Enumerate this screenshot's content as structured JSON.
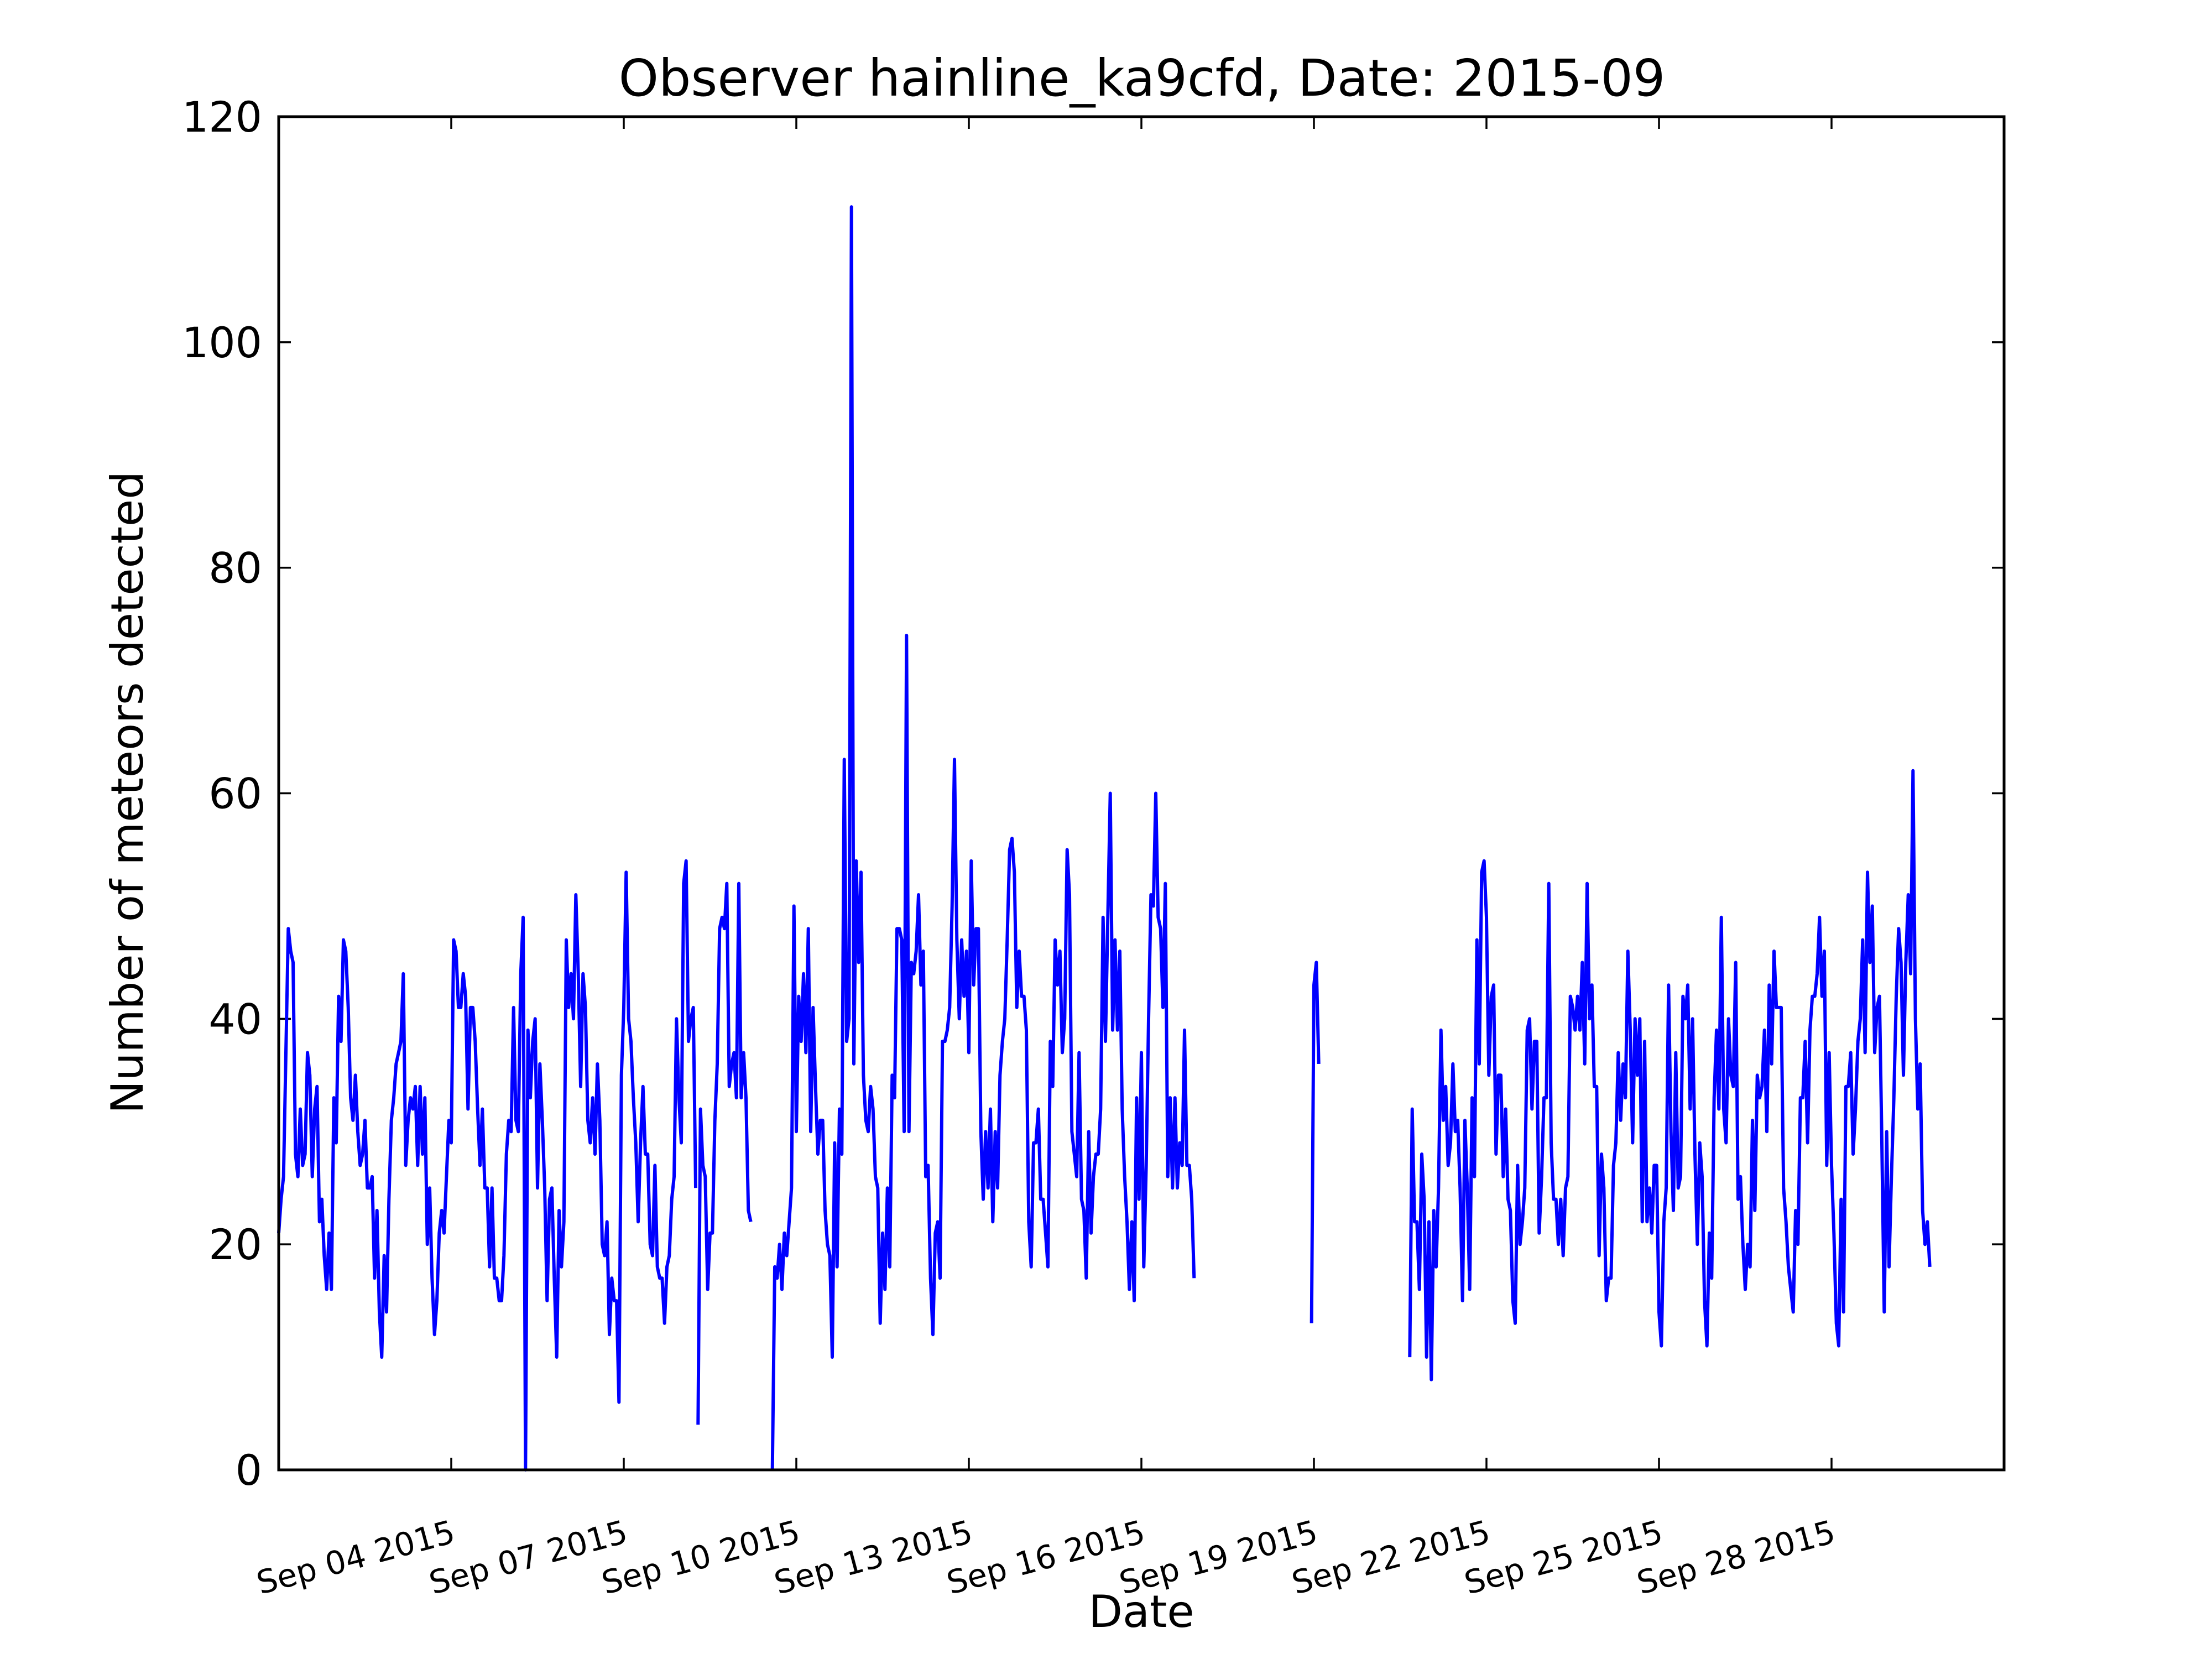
{
  "chart_data": {
    "type": "line",
    "title": "Observer hainline_ka9cfd, Date: 2015-09",
    "xlabel": "Date",
    "ylabel": "Number of meteors detected",
    "ylim": [
      0,
      120
    ],
    "xlim": [
      "2015-09-01 00:00",
      "2015-10-01 00:00"
    ],
    "yticks": [
      0,
      20,
      40,
      60,
      80,
      100,
      120
    ],
    "xticks": [
      "Sep 04 2015",
      "Sep 07 2015",
      "Sep 10 2015",
      "Sep 13 2015",
      "Sep 16 2015",
      "Sep 19 2015",
      "Sep 22 2015",
      "Sep 25 2015",
      "Sep 28 2015"
    ],
    "grid": false,
    "color": "#0000ff",
    "resolution": "hourly",
    "series": [
      {
        "segments": [
          {
            "start": "2015-09-01 00:00",
            "values": [
              21,
              24,
              26,
              37,
              48,
              46,
              45,
              28,
              26,
              32,
              27,
              28,
              37,
              35,
              26,
              32,
              34,
              22,
              24,
              19,
              16,
              21,
              16,
              33,
              29,
              42,
              38,
              47,
              46,
              41,
              33,
              31,
              35,
              30,
              27,
              28,
              31,
              25,
              25,
              26,
              17,
              23,
              14,
              10,
              19,
              14,
              24,
              31,
              33,
              36,
              37,
              38,
              44,
              27,
              31,
              33,
              32,
              34,
              27,
              34,
              28,
              33,
              20,
              25,
              17,
              12,
              15,
              21,
              23,
              21,
              26,
              31,
              29,
              47,
              46,
              41,
              41,
              44,
              42,
              32,
              41,
              41,
              38,
              32,
              27,
              32,
              25,
              25,
              18,
              25,
              17,
              17,
              15,
              15,
              19,
              28,
              31,
              30,
              41,
              31,
              30,
              44,
              49,
              0,
              39,
              33,
              38,
              40,
              25,
              36,
              31,
              25,
              15,
              24,
              25,
              17,
              10,
              23,
              18,
              22,
              47,
              41,
              44,
              40,
              51,
              44,
              34,
              44,
              41,
              31,
              29,
              33,
              28,
              36,
              31,
              20,
              19,
              22,
              12,
              17,
              15,
              15,
              6,
              35,
              41,
              53,
              40,
              38,
              33,
              29,
              22,
              29,
              34,
              28,
              28,
              20,
              19,
              27,
              18,
              17,
              17,
              13,
              18,
              19,
              24,
              26,
              40,
              33,
              29,
              52,
              54,
              38,
              40,
              41,
              25
            ]
          },
          {
            "start": "2015-09-08 07:00",
            "values": [
              4,
              32,
              27,
              26,
              16,
              21,
              21,
              31,
              36,
              48,
              49,
              48,
              52,
              34,
              36,
              37,
              33,
              52,
              33,
              37,
              33,
              23,
              22
            ]
          },
          {
            "start": "2015-09-09 14:00",
            "values": [
              0,
              18,
              17,
              20,
              16,
              21,
              19,
              22,
              25,
              50,
              30,
              42,
              38,
              44,
              37,
              48,
              30,
              41,
              34,
              28,
              31,
              31,
              23,
              20,
              19,
              10,
              29,
              18,
              32,
              28,
              63,
              38,
              40,
              112,
              36,
              54,
              45,
              53,
              35,
              31,
              30,
              34,
              32,
              26,
              25,
              13,
              21,
              16,
              25,
              18,
              35,
              33,
              48,
              48,
              47,
              30,
              74,
              30,
              45,
              44,
              46,
              51,
              43,
              46,
              26,
              27,
              17,
              12,
              21,
              22,
              17,
              38,
              38,
              39,
              41,
              50,
              63,
              47,
              40,
              47,
              42,
              46,
              37,
              54,
              43,
              48,
              48,
              30,
              24,
              30,
              25,
              32,
              22,
              30,
              25,
              35,
              38,
              40,
              47,
              55,
              56,
              53,
              41,
              46,
              42,
              42,
              39,
              22,
              18,
              29,
              29,
              32,
              24,
              24,
              21,
              18,
              38,
              34,
              47,
              43,
              46,
              37,
              40,
              55,
              51,
              30,
              28,
              26,
              37,
              24,
              23,
              17,
              30,
              21,
              26,
              28,
              28,
              32,
              49,
              38,
              49,
              60,
              39,
              47,
              39,
              46,
              32,
              26,
              22,
              16,
              22,
              15,
              33,
              24,
              37,
              18,
              27,
              40,
              51,
              50,
              60,
              49,
              48,
              41,
              52,
              26,
              33,
              25,
              33,
              25,
              29,
              27,
              39,
              27,
              27,
              24,
              17
            ]
          },
          {
            "start": "2015-09-18 23:00",
            "values": [
              13,
              43,
              45,
              36
            ]
          },
          {
            "start": "2015-09-20 16:00",
            "values": [
              10,
              32,
              22,
              22,
              16,
              28,
              24,
              10,
              22,
              8,
              23,
              18,
              25,
              39,
              31,
              34,
              27,
              29,
              36,
              30,
              31,
              25,
              15,
              31,
              25,
              16,
              33,
              26,
              47,
              36,
              53,
              54,
              49,
              35,
              42,
              43,
              28,
              35,
              35,
              26,
              32,
              24,
              23,
              15,
              13,
              27,
              20,
              22,
              25,
              39,
              40,
              32,
              38,
              38,
              21,
              26,
              33,
              33,
              52,
              29,
              24,
              24,
              20,
              24,
              19,
              25,
              26,
              42,
              41,
              39,
              42,
              39,
              45,
              36,
              52,
              40,
              43,
              34,
              34,
              19,
              28,
              25,
              15,
              17,
              17,
              27,
              29,
              37,
              31,
              36,
              33,
              46,
              39,
              29,
              40,
              35,
              40,
              22,
              38,
              22,
              25,
              21,
              27,
              27,
              14,
              11,
              22,
              25,
              43,
              30,
              23,
              37,
              25,
              26,
              42,
              40,
              43,
              32,
              40,
              28,
              20,
              29,
              26,
              15,
              11,
              21,
              17,
              33,
              39,
              32,
              49,
              32,
              29,
              40,
              35,
              34,
              45,
              24,
              26,
              20,
              16,
              20,
              18,
              31,
              23,
              35,
              33,
              34,
              39,
              30,
              43,
              36,
              46,
              41,
              41,
              41,
              25,
              22,
              18,
              16,
              14,
              23,
              20,
              33,
              33,
              38,
              29,
              39,
              42,
              42,
              44,
              49,
              42,
              46,
              27,
              37,
              27,
              21,
              13,
              11,
              24,
              14,
              34,
              34,
              37,
              28,
              32,
              38,
              40,
              47,
              37,
              53,
              45,
              50,
              37,
              41,
              42,
              29,
              14,
              30,
              18,
              26,
              33,
              42,
              48,
              45,
              35,
              45,
              51,
              44,
              62,
              40,
              32,
              36,
              23,
              20,
              22,
              18
            ]
          }
        ]
      }
    ]
  }
}
